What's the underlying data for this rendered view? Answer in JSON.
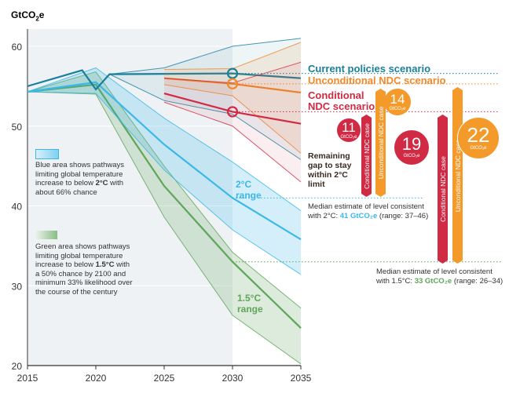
{
  "chart_data": {
    "type": "area",
    "ylabel": "GtCO2e",
    "xlim": [
      2015,
      2035
    ],
    "ylim": [
      20,
      62
    ],
    "xticks": [
      "2015",
      "2020",
      "2025",
      "2030",
      "2035"
    ],
    "yticks": [
      "20",
      "30",
      "40",
      "50",
      "60"
    ],
    "grid": true,
    "colors": {
      "current": "#1a7f9c",
      "unconditional": "#f0892a",
      "conditional": "#d12a44",
      "two": "#3bb8e8",
      "onefive": "#5fa55a"
    },
    "series": [
      {
        "name": "Current policies scenario",
        "key": "current",
        "median": [
          [
            2015,
            55
          ],
          [
            2019,
            57
          ],
          [
            2020,
            54.6
          ],
          [
            2021,
            56.5
          ],
          [
            2030,
            56.6
          ],
          [
            2035,
            56.0
          ]
        ],
        "upper": [
          [
            2021,
            56.5
          ],
          [
            2025,
            57.3
          ],
          [
            2030,
            60
          ],
          [
            2035,
            61
          ]
        ],
        "lower": [
          [
            2021,
            56.5
          ],
          [
            2025,
            53.2
          ],
          [
            2030,
            51.5
          ],
          [
            2035,
            45.8
          ]
        ]
      },
      {
        "name": "Unconditional NDC scenario",
        "key": "unconditional",
        "median": [
          [
            2025,
            56
          ],
          [
            2030,
            55.3
          ],
          [
            2035,
            54.2
          ]
        ],
        "upper": [
          [
            2025,
            57.1
          ],
          [
            2030,
            57.2
          ],
          [
            2035,
            60.5
          ]
        ],
        "lower": [
          [
            2025,
            55.2
          ],
          [
            2030,
            53.8
          ],
          [
            2035,
            46.6
          ]
        ]
      },
      {
        "name": "Conditional NDC scenario",
        "key": "conditional",
        "median": [
          [
            2025,
            54.1
          ],
          [
            2030,
            51.8
          ],
          [
            2035,
            50.3
          ]
        ],
        "upper": [
          [
            2025,
            56
          ],
          [
            2030,
            55.4
          ],
          [
            2035,
            58
          ]
        ],
        "lower": [
          [
            2025,
            53
          ],
          [
            2030,
            50
          ],
          [
            2035,
            43
          ]
        ]
      },
      {
        "name": "2°C range",
        "key": "two",
        "median": [
          [
            2015,
            54.3
          ],
          [
            2020,
            55.5
          ],
          [
            2025,
            47.7
          ],
          [
            2030,
            41
          ],
          [
            2035,
            35.8
          ]
        ],
        "upper": [
          [
            2015,
            54.3
          ],
          [
            2020,
            57.3
          ],
          [
            2025,
            51
          ],
          [
            2030,
            45.5
          ],
          [
            2035,
            39.4
          ]
        ],
        "lower": [
          [
            2015,
            54.3
          ],
          [
            2020,
            54.1
          ],
          [
            2025,
            44.5
          ],
          [
            2030,
            37
          ],
          [
            2035,
            31.4
          ]
        ]
      },
      {
        "name": "1.5°C range",
        "key": "onefive",
        "median": [
          [
            2015,
            54.3
          ],
          [
            2020,
            55.2
          ],
          [
            2025,
            42.5
          ],
          [
            2030,
            33
          ],
          [
            2035,
            24.7
          ]
        ],
        "upper": [
          [
            2015,
            54.3
          ],
          [
            2020,
            56.8
          ],
          [
            2025,
            45
          ],
          [
            2030,
            34.2
          ],
          [
            2035,
            27.2
          ]
        ],
        "lower": [
          [
            2015,
            54.3
          ],
          [
            2020,
            54
          ],
          [
            2025,
            38.6
          ],
          [
            2030,
            26.3
          ],
          [
            2035,
            20.2
          ]
        ]
      }
    ],
    "labels": {
      "current": "Current policies scenario",
      "unconditional": "Unconditional NDC scenario",
      "conditional_1": "Conditional",
      "conditional_2": "NDC scenario",
      "two_1": "2°C",
      "two_2": "range",
      "onefive_1": "1.5°C",
      "onefive_2": "range"
    },
    "gap_title": [
      "Remaining",
      "gap to stay",
      "within 2°C",
      "limit"
    ],
    "gaps": [
      {
        "target": "2°C",
        "case": "Conditional NDC case",
        "value": "11",
        "unit": "GtCO₂e"
      },
      {
        "target": "2°C",
        "case": "Unconditional NDC case",
        "value": "14",
        "unit": "GtCO₂e"
      },
      {
        "target": "1.5°C",
        "case": "Conditional NDC case",
        "value": "19",
        "unit": "GtCO₂e"
      },
      {
        "target": "1.5°C",
        "case": "Unconditional NDC case",
        "value": "22",
        "unit": "GtCO₂e"
      }
    ],
    "median_2c": {
      "line1": "Median estimate of level consistent",
      "prefix": "with 2°C: ",
      "value": "41 GtCO₂e",
      "suffix": " (range: 37–46)",
      "level": 41
    },
    "median_15c": {
      "line1": "Median estimate of level consistent",
      "prefix": "with 1.5°C: ",
      "value": "33 GtCO₂e",
      "suffix": " (range: 26–34)",
      "level": 33
    },
    "legend": {
      "blue": [
        "Blue area shows pathways",
        "limiting global temperature",
        "increase to below ",
        "2°C",
        " with",
        "about 66% chance"
      ],
      "green": [
        "Green area shows pathways",
        "limiting global temperature",
        "increase to below ",
        "1.5°C",
        " with",
        "a 50% chance by 2100 and",
        "minimum 33% likelihood over",
        "the course of the century"
      ]
    }
  }
}
